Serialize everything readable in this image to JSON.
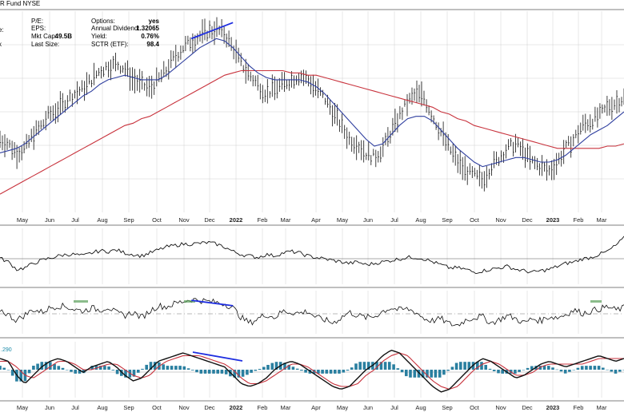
{
  "header": {
    "title": "R Fund",
    "exchange": "NYSE",
    "rows": [
      {
        "label": "P/E:",
        "value": "",
        "label2": "Options:",
        "value2": "yes"
      },
      {
        "label": "EPS:",
        "value": "",
        "label2": "Annual Dividend:",
        "value2": "1.32065"
      },
      {
        "label": "Mkt Cap:",
        "value": "49.5B",
        "label2": "Yield:",
        "value2": "0.76%"
      },
      {
        "label": "Last Size:",
        "value": "",
        "label2": "SCTR (ETF):",
        "value2": "98.4"
      }
    ],
    "cut_labels": [
      "e:",
      "x"
    ]
  },
  "colors": {
    "price": "#111111",
    "sma_short": "#2f3f9f",
    "sma_long": "#c8323c",
    "trendline": "#1e2ee0",
    "histogram": "#2a7fa0",
    "indicator_text": "#1a8aa8",
    "grid": "#d0d0d0"
  },
  "chart_data": [
    {
      "type": "line",
      "panel": "price",
      "x_ticks": [
        "May",
        "Jun",
        "Jul",
        "Aug",
        "Sep",
        "Oct",
        "Nov",
        "Dec",
        "2022",
        "Feb",
        "Mar",
        "Apr",
        "May",
        "Jun",
        "Jul",
        "Aug",
        "Sep",
        "Oct",
        "Nov",
        "Dec",
        "2023",
        "Feb",
        "Mar"
      ],
      "bold_ticks": [
        "2022",
        "2023"
      ],
      "series": [
        {
          "style": "ohlc",
          "values": [
            52,
            50,
            46,
            48,
            54,
            58,
            63,
            65,
            69,
            72,
            74,
            78,
            82,
            84,
            85,
            83,
            78,
            76,
            74,
            78,
            82,
            88,
            92,
            95,
            97,
            99,
            100,
            98,
            92,
            85,
            80,
            76,
            72,
            74,
            76,
            78,
            80,
            78,
            74,
            70,
            64,
            58,
            52,
            50,
            46,
            44,
            48,
            55,
            62,
            68,
            72,
            70,
            62,
            55,
            48,
            42,
            38,
            36,
            34,
            40,
            44,
            48,
            50,
            46,
            42,
            40,
            38,
            42,
            48,
            52,
            58,
            60,
            62,
            66,
            68,
            70
          ]
        },
        {
          "style": "sma_short",
          "values": [
            46,
            47,
            48,
            50,
            53,
            56,
            59,
            62,
            65,
            68,
            71,
            73,
            76,
            78,
            79,
            80,
            79,
            78,
            78,
            78,
            80,
            83,
            86,
            89,
            92,
            94,
            96,
            95,
            92,
            88,
            84,
            81,
            79,
            78,
            78,
            78,
            78,
            77,
            75,
            72,
            68,
            64,
            60,
            56,
            52,
            49,
            50,
            54,
            58,
            61,
            62,
            62,
            60,
            56,
            52,
            48,
            45,
            42,
            40,
            41,
            42,
            43,
            44,
            44,
            43,
            42,
            42,
            43,
            45,
            48,
            51,
            54,
            56,
            58,
            61,
            64
          ]
        },
        {
          "style": "sma_long",
          "values": [
            28,
            30,
            32,
            34,
            36,
            38,
            40,
            42,
            44,
            46,
            48,
            50,
            52,
            54,
            56,
            58,
            59,
            61,
            62,
            64,
            66,
            68,
            70,
            72,
            74,
            76,
            78,
            80,
            81,
            82,
            82,
            82,
            82,
            82,
            82,
            81,
            81,
            80,
            80,
            79,
            78,
            77,
            76,
            75,
            74,
            73,
            72,
            71,
            70,
            69,
            68,
            67,
            66,
            64,
            63,
            61,
            60,
            58,
            57,
            56,
            55,
            54,
            53,
            52,
            51,
            50,
            49,
            48,
            48,
            48,
            48,
            48,
            48,
            49,
            49,
            50
          ]
        }
      ],
      "annotations": [
        {
          "type": "trendline",
          "from": [
            23,
            96
          ],
          "to": [
            28,
            103
          ]
        }
      ]
    },
    {
      "type": "line",
      "panel": "relative",
      "series": [
        {
          "values": [
            55,
            50,
            40,
            42,
            48,
            52,
            55,
            58,
            60,
            60,
            58,
            62,
            65,
            64,
            66,
            62,
            60,
            58,
            62,
            66,
            70,
            72,
            74,
            74,
            75,
            76,
            74,
            70,
            64,
            60,
            58,
            56,
            60,
            58,
            62,
            64,
            62,
            58,
            56,
            54,
            52,
            50,
            48,
            50,
            46,
            48,
            50,
            52,
            54,
            56,
            56,
            54,
            50,
            46,
            42,
            42,
            40,
            36,
            38,
            40,
            42,
            44,
            40,
            38,
            36,
            38,
            40,
            44,
            48,
            50,
            54,
            56,
            60,
            64,
            72,
            82
          ]
        }
      ]
    },
    {
      "type": "line",
      "panel": "oscillator",
      "series": [
        {
          "values": [
            55,
            45,
            35,
            45,
            55,
            50,
            58,
            62,
            60,
            55,
            52,
            58,
            54,
            60,
            48,
            44,
            50,
            40,
            52,
            62,
            60,
            66,
            70,
            74,
            72,
            70,
            68,
            66,
            58,
            40,
            30,
            38,
            46,
            40,
            52,
            50,
            48,
            52,
            40,
            36,
            30,
            40,
            50,
            44,
            40,
            42,
            52,
            58,
            54,
            56,
            50,
            38,
            34,
            38,
            28,
            26,
            36,
            40,
            42,
            30,
            36,
            44,
            38,
            30,
            38,
            34,
            42,
            40,
            46,
            54,
            48,
            52,
            56,
            60,
            54,
            58
          ]
        }
      ],
      "annotations": [
        {
          "type": "trendline",
          "from": [
            23,
            72
          ],
          "to": [
            28,
            62
          ]
        }
      ]
    },
    {
      "type": "line",
      "panel": "macd",
      "top_label": ".290",
      "series": [
        {
          "style": "macd_line",
          "values": [
            4,
            3,
            -2,
            -5,
            -2,
            1,
            3,
            4,
            3,
            1,
            -1,
            1,
            2,
            3,
            1,
            -2,
            -4,
            -3,
            0,
            3,
            4,
            5,
            6,
            5,
            4,
            3,
            2,
            1,
            -2,
            -5,
            -6,
            -5,
            -3,
            0,
            2,
            3,
            2,
            0,
            -2,
            -4,
            -6,
            -7,
            -6,
            -3,
            0,
            2,
            5,
            7,
            6,
            3,
            0,
            -3,
            -6,
            -8,
            -7,
            -4,
            -1,
            2,
            4,
            3,
            1,
            -1,
            -3,
            -2,
            0,
            2,
            3,
            2,
            1,
            2,
            3,
            4,
            5,
            4,
            3,
            4
          ]
        },
        {
          "style": "signal",
          "values": [
            3,
            3,
            1,
            -2,
            -3,
            -1,
            1,
            3,
            3,
            2,
            0,
            0,
            1,
            2,
            2,
            0,
            -2,
            -3,
            -2,
            1,
            3,
            4,
            5,
            5,
            5,
            4,
            3,
            2,
            0,
            -3,
            -5,
            -5,
            -4,
            -2,
            0,
            2,
            2,
            1,
            -1,
            -3,
            -5,
            -6,
            -6,
            -5,
            -2,
            0,
            3,
            5,
            6,
            5,
            2,
            -1,
            -4,
            -6,
            -7,
            -6,
            -3,
            0,
            2,
            3,
            2,
            0,
            -2,
            -2,
            -1,
            1,
            2,
            2,
            2,
            2,
            2,
            3,
            4,
            4,
            4,
            4
          ]
        }
      ]
    }
  ]
}
